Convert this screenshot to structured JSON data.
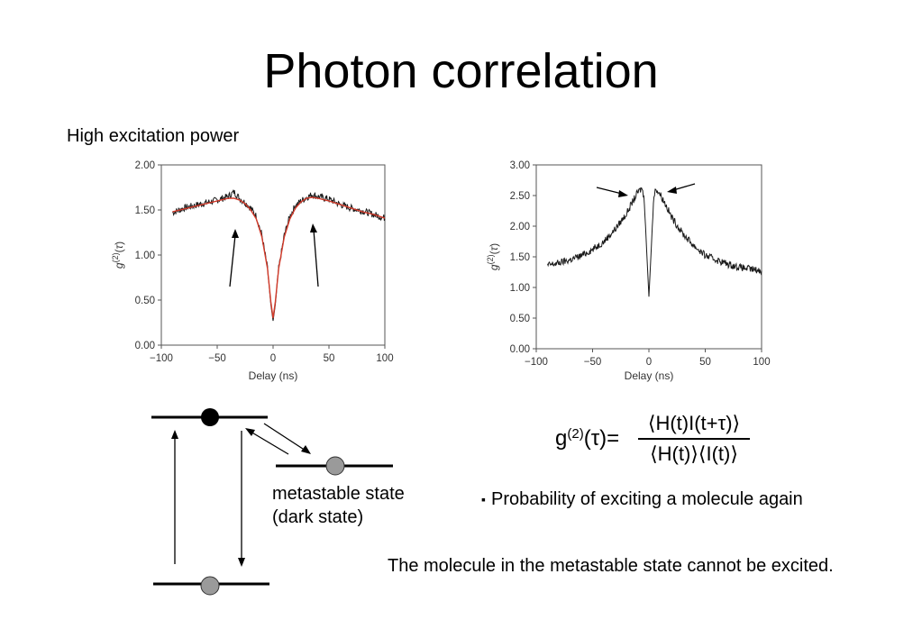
{
  "slide": {
    "title": "Photon correlation",
    "subtitle": "High excitation power"
  },
  "chart_data": [
    {
      "type": "line",
      "title": "",
      "xlabel": "Delay (ns)",
      "ylabel": "g(2)(τ)",
      "xlim": [
        -100,
        100
      ],
      "ylim": [
        0,
        2
      ],
      "xticks": [
        "−100",
        "−50",
        "0",
        "50",
        "100"
      ],
      "yticks": [
        "0.00",
        "0.50",
        "1.00",
        "1.50",
        "2.00"
      ],
      "grid": false,
      "legend": "none",
      "series": [
        {
          "color": "#1a1a1a",
          "x": [
            -90,
            -80,
            -70,
            -60,
            -50,
            -40,
            -35,
            -30,
            -25,
            -20,
            -15,
            -10,
            -5,
            -2,
            0,
            2,
            5,
            10,
            15,
            20,
            25,
            30,
            35,
            40,
            50,
            60,
            70,
            80,
            90,
            100
          ],
          "y": [
            1.47,
            1.52,
            1.55,
            1.58,
            1.61,
            1.65,
            1.7,
            1.63,
            1.58,
            1.52,
            1.43,
            1.22,
            0.85,
            0.45,
            0.27,
            0.45,
            0.85,
            1.22,
            1.43,
            1.55,
            1.6,
            1.64,
            1.67,
            1.65,
            1.62,
            1.56,
            1.52,
            1.49,
            1.45,
            1.41
          ]
        },
        {
          "color": "#d23a2a",
          "x": [
            -90,
            -80,
            -70,
            -60,
            -50,
            -40,
            -35,
            -30,
            -25,
            -20,
            -15,
            -10,
            -5,
            -2,
            0,
            2,
            5,
            10,
            15,
            20,
            25,
            30,
            35,
            40,
            50,
            60,
            70,
            80,
            90,
            100
          ],
          "y": [
            1.48,
            1.51,
            1.54,
            1.57,
            1.6,
            1.63,
            1.63,
            1.61,
            1.57,
            1.5,
            1.4,
            1.2,
            0.85,
            0.48,
            0.3,
            0.48,
            0.85,
            1.2,
            1.4,
            1.52,
            1.59,
            1.63,
            1.64,
            1.63,
            1.6,
            1.56,
            1.52,
            1.48,
            1.45,
            1.41
          ]
        }
      ]
    },
    {
      "type": "line",
      "title": "",
      "xlabel": "Delay (ns)",
      "ylabel": "g(2)(τ)",
      "xlim": [
        -100,
        100
      ],
      "ylim": [
        0,
        3
      ],
      "xticks": [
        "−100",
        "−50",
        "0",
        "50",
        "100"
      ],
      "yticks": [
        "0.00",
        "0.50",
        "1.00",
        "1.50",
        "2.00",
        "2.50",
        "3.00"
      ],
      "grid": false,
      "legend": "none",
      "series": [
        {
          "color": "#1a1a1a",
          "x": [
            -90,
            -80,
            -70,
            -60,
            -50,
            -40,
            -30,
            -20,
            -15,
            -10,
            -6,
            -4,
            -2,
            0,
            2,
            4,
            6,
            10,
            15,
            20,
            30,
            40,
            50,
            60,
            70,
            80,
            90,
            100
          ],
          "y": [
            1.36,
            1.4,
            1.45,
            1.52,
            1.62,
            1.75,
            1.95,
            2.2,
            2.38,
            2.55,
            2.62,
            2.4,
            1.6,
            0.85,
            1.6,
            2.4,
            2.62,
            2.52,
            2.35,
            2.15,
            1.88,
            1.68,
            1.52,
            1.45,
            1.38,
            1.33,
            1.3,
            1.27
          ]
        }
      ]
    }
  ],
  "diagram": {
    "labels": {
      "metastable_line1": "metastable state",
      "metastable_line2": "(dark state)"
    }
  },
  "formula": {
    "lhs_base": "g",
    "lhs_sup": "(2)",
    "lhs_arg": "(τ)=",
    "numerator": "⟨H(t)I(t+τ)⟩",
    "denominator": "⟨H(t)⟩⟨I(t)⟩"
  },
  "bullets": {
    "marker": "▪",
    "probability": "Probability of exciting a molecule again",
    "conclusion": "The molecule in the metastable state cannot be excited."
  }
}
